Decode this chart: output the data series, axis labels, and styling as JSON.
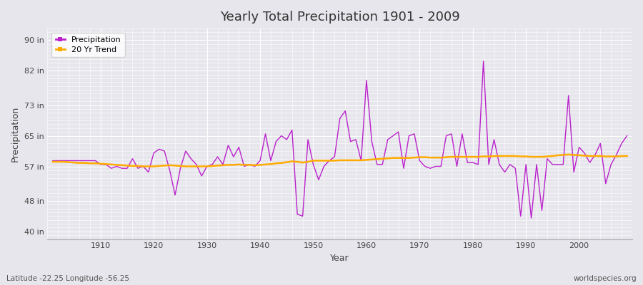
{
  "title": "Yearly Total Precipitation 1901 - 2009",
  "xlabel": "Year",
  "ylabel": "Precipitation",
  "subtitle": "Latitude -22.25 Longitude -56.25",
  "watermark": "worldspecies.org",
  "background_color": "#e6e6ec",
  "plot_bg_color": "#e6e6ec",
  "precip_color": "#bb22cc",
  "trend_color": "#ffaa00",
  "yticks": [
    40,
    48,
    57,
    65,
    73,
    82,
    90
  ],
  "ytick_labels": [
    "40 in",
    "48 in",
    "57 in",
    "65 in",
    "73 in",
    "82 in",
    "90 in"
  ],
  "ylim": [
    38,
    93
  ],
  "xlim": [
    1900,
    2010
  ],
  "years": [
    1901,
    1902,
    1903,
    1904,
    1905,
    1906,
    1907,
    1908,
    1909,
    1910,
    1911,
    1912,
    1913,
    1914,
    1915,
    1916,
    1917,
    1918,
    1919,
    1920,
    1921,
    1922,
    1923,
    1924,
    1925,
    1926,
    1927,
    1928,
    1929,
    1930,
    1931,
    1932,
    1933,
    1934,
    1935,
    1936,
    1937,
    1938,
    1939,
    1940,
    1941,
    1942,
    1943,
    1944,
    1945,
    1946,
    1947,
    1948,
    1949,
    1950,
    1951,
    1952,
    1953,
    1954,
    1955,
    1956,
    1957,
    1958,
    1959,
    1960,
    1961,
    1962,
    1963,
    1964,
    1965,
    1966,
    1967,
    1968,
    1969,
    1970,
    1971,
    1972,
    1973,
    1974,
    1975,
    1976,
    1977,
    1978,
    1979,
    1980,
    1981,
    1982,
    1983,
    1984,
    1985,
    1986,
    1987,
    1988,
    1989,
    1990,
    1991,
    1992,
    1993,
    1994,
    1995,
    1996,
    1997,
    1998,
    1999,
    2000,
    2001,
    2002,
    2003,
    2004,
    2005,
    2006,
    2007,
    2008,
    2009
  ],
  "precip": [
    58.5,
    58.5,
    58.5,
    58.5,
    58.5,
    58.5,
    58.5,
    58.5,
    58.5,
    57.5,
    57.5,
    56.5,
    57.0,
    56.5,
    56.5,
    59.0,
    56.5,
    57.0,
    55.5,
    60.5,
    61.5,
    61.0,
    56.0,
    49.5,
    56.5,
    61.0,
    59.0,
    57.5,
    54.5,
    57.0,
    57.5,
    59.5,
    57.5,
    62.5,
    59.5,
    62.0,
    57.0,
    57.5,
    57.0,
    58.5,
    65.5,
    58.5,
    63.5,
    65.0,
    64.0,
    66.5,
    44.5,
    44.0,
    64.0,
    57.5,
    53.5,
    57.0,
    58.5,
    59.5,
    69.5,
    71.5,
    63.5,
    64.0,
    58.5,
    79.5,
    63.5,
    57.5,
    57.5,
    64.0,
    65.0,
    66.0,
    56.5,
    65.0,
    65.5,
    58.5,
    57.0,
    56.5,
    57.0,
    57.0,
    65.0,
    65.5,
    57.0,
    65.5,
    58.0,
    58.0,
    57.5,
    84.5,
    57.5,
    64.0,
    57.5,
    55.5,
    57.5,
    56.5,
    44.0,
    57.5,
    43.5,
    57.5,
    45.5,
    59.0,
    57.5,
    57.5,
    57.5,
    75.5,
    55.5,
    62.0,
    60.5,
    58.0,
    60.0,
    63.0,
    52.5,
    57.5,
    60.0,
    63.0,
    65.0
  ],
  "trend": [
    58.2,
    58.2,
    58.2,
    58.1,
    58.0,
    57.9,
    57.9,
    57.8,
    57.8,
    57.7,
    57.6,
    57.5,
    57.4,
    57.3,
    57.2,
    57.1,
    57.1,
    57.0,
    57.0,
    57.0,
    57.1,
    57.2,
    57.3,
    57.2,
    57.1,
    57.0,
    57.0,
    57.0,
    57.0,
    57.0,
    57.1,
    57.2,
    57.3,
    57.4,
    57.4,
    57.5,
    57.4,
    57.4,
    57.3,
    57.4,
    57.5,
    57.6,
    57.8,
    57.9,
    58.1,
    58.3,
    58.2,
    58.0,
    58.2,
    58.5,
    58.5,
    58.5,
    58.5,
    58.5,
    58.6,
    58.6,
    58.6,
    58.6,
    58.6,
    58.7,
    58.8,
    58.9,
    59.0,
    59.1,
    59.2,
    59.2,
    59.2,
    59.2,
    59.3,
    59.4,
    59.4,
    59.3,
    59.3,
    59.3,
    59.4,
    59.5,
    59.5,
    59.5,
    59.5,
    59.5,
    59.5,
    59.6,
    59.6,
    59.7,
    59.7,
    59.7,
    59.7,
    59.7,
    59.6,
    59.6,
    59.5,
    59.5,
    59.5,
    59.6,
    59.7,
    59.9,
    60.0,
    60.1,
    60.0,
    59.9,
    59.8,
    59.7,
    59.7,
    59.7,
    59.6,
    59.6,
    59.6,
    59.7,
    59.7
  ]
}
